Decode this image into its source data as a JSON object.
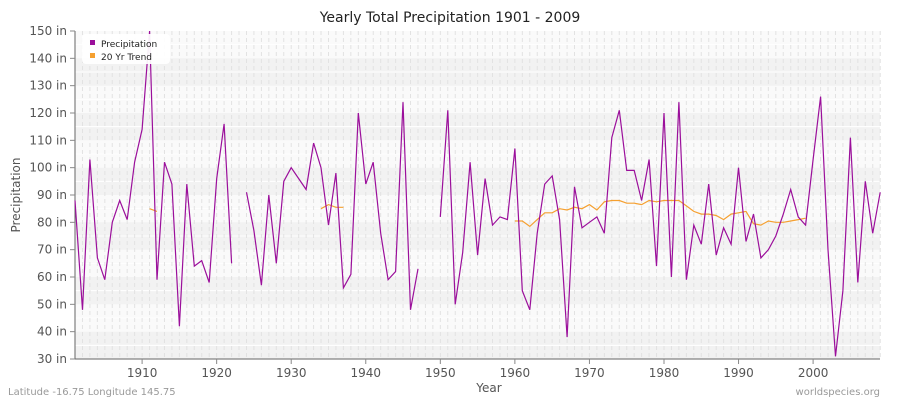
{
  "chart_data": {
    "type": "line",
    "title": "Yearly Total Precipitation 1901 - 2009",
    "xlabel": "Year",
    "ylabel": "Precipitation",
    "xlim": [
      1901,
      2009
    ],
    "ylim": [
      30,
      150
    ],
    "y_ticks": [
      "30 in",
      "40 in",
      "50 in",
      "60 in",
      "70 in",
      "80 in",
      "90 in",
      "100 in",
      "110 in",
      "120 in",
      "130 in",
      "140 in",
      "150 in"
    ],
    "x_ticks": [
      "1910",
      "1920",
      "1930",
      "1940",
      "1950",
      "1960",
      "1970",
      "1980",
      "1990",
      "2000"
    ],
    "grid": true,
    "legend_position": "top-left",
    "legend": [
      "Precipitation",
      "20 Yr Trend"
    ],
    "colors": {
      "Precipitation": "#9b0f9b",
      "20 Yr Trend": "#f5a030"
    },
    "series": [
      {
        "name": "Precipitation",
        "x_start": 1901,
        "values": [
          88,
          48,
          103,
          67,
          59,
          80,
          88,
          81,
          102,
          114,
          150,
          59,
          102,
          94,
          42,
          94,
          64,
          66,
          58,
          96,
          116,
          65,
          null,
          91,
          77,
          57,
          90,
          65,
          95,
          100,
          96,
          92,
          109,
          100,
          79,
          98,
          56,
          61,
          120,
          94,
          102,
          76,
          59,
          62,
          124,
          48,
          63,
          null,
          null,
          82,
          121,
          50,
          69,
          102,
          68,
          96,
          79,
          82,
          81,
          107,
          55,
          48,
          76,
          94,
          97,
          81,
          38,
          93,
          78,
          80,
          82,
          76,
          111,
          121,
          99,
          99,
          88,
          103,
          64,
          120,
          60,
          124,
          59,
          79,
          72,
          94,
          68,
          78,
          72,
          100,
          73,
          83,
          67,
          70,
          75,
          83,
          92,
          82,
          79,
          103,
          126,
          70,
          31,
          55,
          111,
          58,
          95,
          76,
          91
        ]
      },
      {
        "name": "20 Yr Trend",
        "segments": [
          {
            "x_start": 1911,
            "values": [
              85,
              84
            ]
          },
          {
            "x_start": 1934,
            "values": [
              85,
              86.5,
              85.5,
              85.5
            ]
          },
          {
            "x_start": 1960,
            "values": [
              80.5,
              80.5,
              78.5,
              81,
              83.5,
              83.5,
              85,
              84.5,
              85.5,
              85,
              86.5,
              84.5,
              87.5,
              88,
              88,
              87,
              87,
              86.5,
              88,
              87.5,
              88,
              88,
              88,
              86,
              84,
              83,
              83,
              82.5,
              81,
              83,
              83.5,
              84,
              79.5,
              79,
              80.5,
              80,
              80,
              80.5,
              81,
              81.5
            ]
          }
        ]
      }
    ]
  },
  "footer": {
    "location": "Latitude -16.75 Longitude 145.75",
    "source": "worldspecies.org"
  }
}
